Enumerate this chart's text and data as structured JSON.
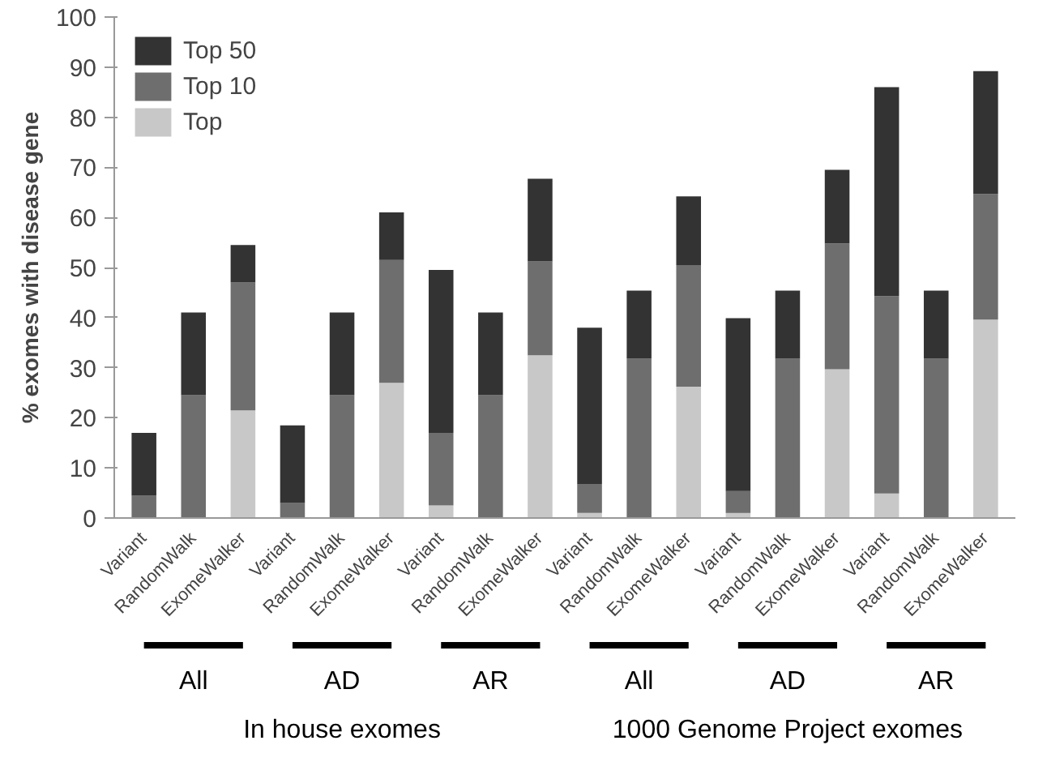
{
  "chart_data": {
    "type": "bar",
    "stacked": true,
    "ylabel": "% exomes with disease gene",
    "categories": [
      "Variant",
      "RandomWalk",
      "ExomeWalker",
      "Variant",
      "RandomWalk",
      "ExomeWalker",
      "Variant",
      "RandomWalk",
      "ExomeWalker",
      "Variant",
      "RandomWalk",
      "ExomeWalker",
      "Variant",
      "RandomWalk",
      "ExomeWalker",
      "Variant",
      "RandomWalk",
      "ExomeWalker"
    ],
    "series": [
      {
        "name": "Top",
        "color": "#c8c8c8",
        "values": [
          null,
          0,
          21.5,
          null,
          0,
          27,
          2.5,
          0,
          32.5,
          1,
          0,
          26.2,
          1,
          0,
          29.7,
          4.9,
          0,
          39.6
        ]
      },
      {
        "name": "Top 10",
        "color": "#6e6e6e",
        "values": [
          4.5,
          24.5,
          25.5,
          3,
          24.5,
          24.5,
          14.5,
          24.5,
          18.7,
          5.8,
          31.8,
          24.3,
          4.4,
          31.8,
          25.1,
          39.4,
          31.8,
          25.1
        ]
      },
      {
        "name": "Top 50",
        "color": "#333333",
        "values": [
          12.5,
          16.5,
          7.5,
          15.5,
          16.5,
          9.5,
          32.5,
          16.5,
          16.5,
          31.2,
          13.6,
          13.7,
          34.5,
          13.6,
          14.7,
          41.7,
          13.6,
          24.5
        ]
      }
    ],
    "ylim": [
      0,
      100
    ],
    "yticks": [
      0,
      10,
      20,
      30,
      40,
      50,
      60,
      70,
      80,
      90,
      100
    ],
    "grid": false,
    "legend": "top left",
    "annotations": [
      "All",
      "AD",
      "AR",
      "All",
      "AD",
      "AR",
      "In house exomes",
      "1000 Genome Project exomes"
    ]
  }
}
